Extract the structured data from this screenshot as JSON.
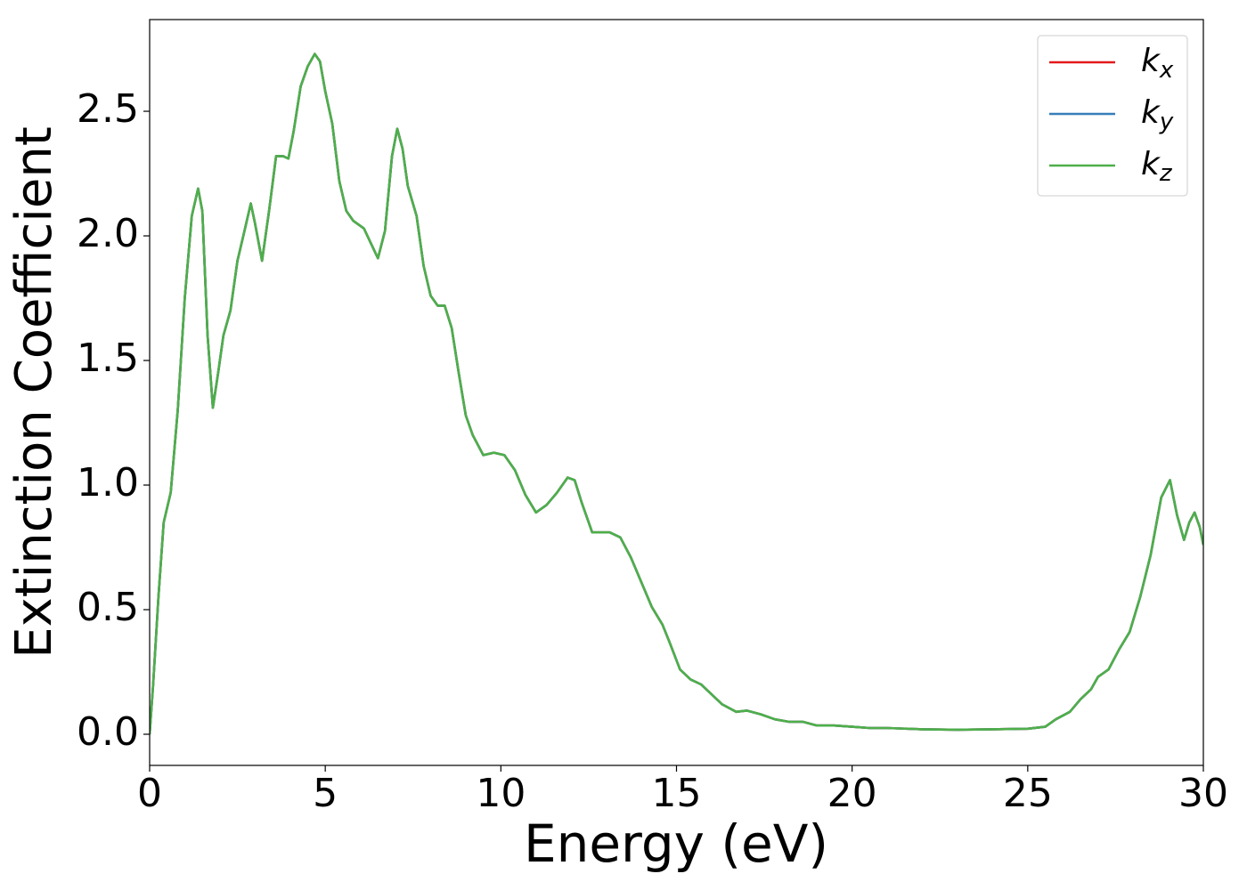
{
  "chart_data": {
    "type": "line",
    "xlabel": "Energy (eV)",
    "ylabel": "Extinction Coefficient",
    "xlim": [
      0,
      30
    ],
    "ylim": [
      -0.125,
      2.868
    ],
    "xticks": [
      0,
      5,
      10,
      15,
      20,
      25,
      30
    ],
    "yticks": [
      {
        "value": 0,
        "label": "0.0"
      },
      0.5,
      {
        "value": 1,
        "label": "1.0"
      },
      1.5,
      {
        "value": 2,
        "label": "2.0"
      },
      2.5
    ],
    "grid": false,
    "legend": "upper right",
    "x": [
      0,
      0.1,
      0.25,
      0.4,
      0.6,
      0.8,
      1.0,
      1.2,
      1.38,
      1.5,
      1.65,
      1.8,
      1.95,
      2.1,
      2.3,
      2.5,
      2.7,
      2.88,
      3.0,
      3.2,
      3.4,
      3.6,
      3.8,
      3.95,
      4.1,
      4.3,
      4.5,
      4.7,
      4.85,
      5.0,
      5.2,
      5.4,
      5.6,
      5.8,
      6.1,
      6.3,
      6.5,
      6.7,
      6.9,
      7.05,
      7.2,
      7.35,
      7.6,
      7.8,
      8.0,
      8.2,
      8.4,
      8.6,
      8.8,
      9.0,
      9.2,
      9.5,
      9.8,
      10.1,
      10.4,
      10.7,
      11.0,
      11.3,
      11.6,
      11.9,
      12.1,
      12.3,
      12.6,
      12.9,
      13.1,
      13.4,
      13.7,
      14.0,
      14.3,
      14.6,
      14.8,
      15.1,
      15.4,
      15.7,
      16.0,
      16.3,
      16.7,
      17.0,
      17.4,
      17.8,
      18.2,
      18.6,
      19.0,
      19.5,
      20.0,
      20.5,
      21.0,
      22.0,
      23.0,
      24.0,
      25.0,
      25.5,
      25.8,
      26.2,
      26.5,
      26.8,
      27.0,
      27.3,
      27.6,
      27.9,
      28.2,
      28.5,
      28.8,
      29.05,
      29.25,
      29.45,
      29.6,
      29.75,
      29.9,
      30.0
    ],
    "series": [
      {
        "name": "kx",
        "color": "#e41a1c",
        "values": [
          0,
          0.2,
          0.55,
          0.85,
          0.97,
          1.3,
          1.75,
          2.08,
          2.19,
          2.1,
          1.6,
          1.31,
          1.45,
          1.6,
          1.7,
          1.9,
          2.02,
          2.13,
          2.05,
          1.9,
          2.1,
          2.32,
          2.32,
          2.31,
          2.42,
          2.6,
          2.68,
          2.73,
          2.7,
          2.58,
          2.45,
          2.22,
          2.1,
          2.06,
          2.03,
          1.97,
          1.91,
          2.02,
          2.32,
          2.43,
          2.35,
          2.2,
          2.08,
          1.88,
          1.76,
          1.72,
          1.72,
          1.63,
          1.45,
          1.28,
          1.2,
          1.12,
          1.13,
          1.12,
          1.06,
          0.96,
          0.89,
          0.92,
          0.97,
          1.03,
          1.02,
          0.93,
          0.81,
          0.81,
          0.81,
          0.79,
          0.71,
          0.61,
          0.51,
          0.44,
          0.37,
          0.26,
          0.22,
          0.2,
          0.16,
          0.12,
          0.09,
          0.095,
          0.08,
          0.06,
          0.05,
          0.05,
          0.035,
          0.035,
          0.03,
          0.025,
          0.025,
          0.02,
          0.018,
          0.02,
          0.022,
          0.03,
          0.06,
          0.09,
          0.14,
          0.18,
          0.23,
          0.26,
          0.34,
          0.41,
          0.55,
          0.72,
          0.95,
          1.02,
          0.88,
          0.78,
          0.85,
          0.89,
          0.83,
          0.76
        ]
      },
      {
        "name": "ky",
        "color": "#377eb8",
        "values": [
          0,
          0.2,
          0.55,
          0.85,
          0.97,
          1.3,
          1.75,
          2.08,
          2.19,
          2.1,
          1.6,
          1.31,
          1.45,
          1.6,
          1.7,
          1.9,
          2.02,
          2.13,
          2.05,
          1.9,
          2.1,
          2.32,
          2.32,
          2.31,
          2.42,
          2.6,
          2.68,
          2.73,
          2.7,
          2.58,
          2.45,
          2.22,
          2.1,
          2.06,
          2.03,
          1.97,
          1.91,
          2.02,
          2.32,
          2.43,
          2.35,
          2.2,
          2.08,
          1.88,
          1.76,
          1.72,
          1.72,
          1.63,
          1.45,
          1.28,
          1.2,
          1.12,
          1.13,
          1.12,
          1.06,
          0.96,
          0.89,
          0.92,
          0.97,
          1.03,
          1.02,
          0.93,
          0.81,
          0.81,
          0.81,
          0.79,
          0.71,
          0.61,
          0.51,
          0.44,
          0.37,
          0.26,
          0.22,
          0.2,
          0.16,
          0.12,
          0.09,
          0.095,
          0.08,
          0.06,
          0.05,
          0.05,
          0.035,
          0.035,
          0.03,
          0.025,
          0.025,
          0.02,
          0.018,
          0.02,
          0.022,
          0.03,
          0.06,
          0.09,
          0.14,
          0.18,
          0.23,
          0.26,
          0.34,
          0.41,
          0.55,
          0.72,
          0.95,
          1.02,
          0.88,
          0.78,
          0.85,
          0.89,
          0.83,
          0.76
        ]
      },
      {
        "name": "kz",
        "color": "#4daf4a",
        "values": [
          0,
          0.2,
          0.55,
          0.85,
          0.97,
          1.3,
          1.75,
          2.08,
          2.19,
          2.1,
          1.6,
          1.31,
          1.45,
          1.6,
          1.7,
          1.9,
          2.02,
          2.13,
          2.05,
          1.9,
          2.1,
          2.32,
          2.32,
          2.31,
          2.42,
          2.6,
          2.68,
          2.73,
          2.7,
          2.58,
          2.45,
          2.22,
          2.1,
          2.06,
          2.03,
          1.97,
          1.91,
          2.02,
          2.32,
          2.43,
          2.35,
          2.2,
          2.08,
          1.88,
          1.76,
          1.72,
          1.72,
          1.63,
          1.45,
          1.28,
          1.2,
          1.12,
          1.13,
          1.12,
          1.06,
          0.96,
          0.89,
          0.92,
          0.97,
          1.03,
          1.02,
          0.93,
          0.81,
          0.81,
          0.81,
          0.79,
          0.71,
          0.61,
          0.51,
          0.44,
          0.37,
          0.26,
          0.22,
          0.2,
          0.16,
          0.12,
          0.09,
          0.095,
          0.08,
          0.06,
          0.05,
          0.05,
          0.035,
          0.035,
          0.03,
          0.025,
          0.025,
          0.02,
          0.018,
          0.02,
          0.022,
          0.03,
          0.06,
          0.09,
          0.14,
          0.18,
          0.23,
          0.26,
          0.34,
          0.41,
          0.55,
          0.72,
          0.95,
          1.02,
          0.88,
          0.78,
          0.85,
          0.89,
          0.83,
          0.76
        ]
      }
    ]
  }
}
